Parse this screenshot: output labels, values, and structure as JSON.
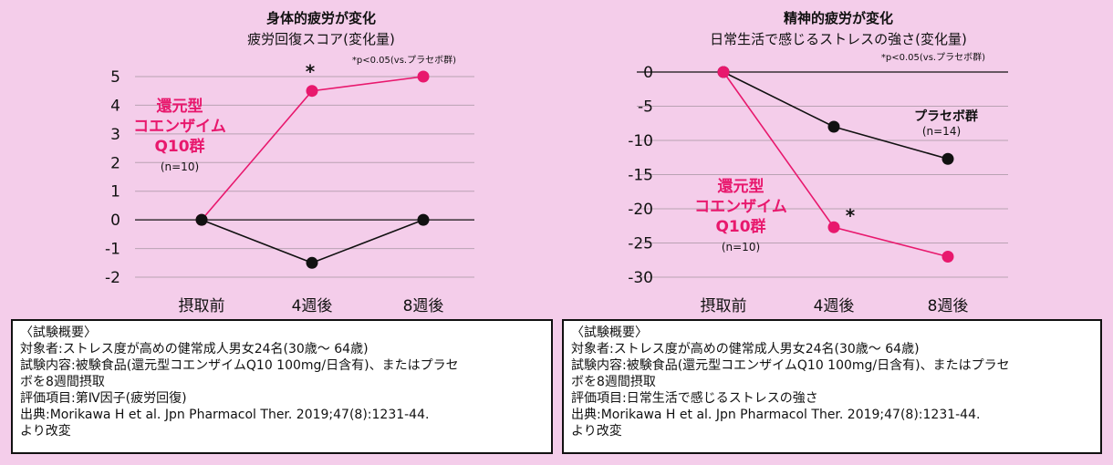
{
  "colors": {
    "background": "#f4cdea",
    "treatment": "#e8186d",
    "placebo": "#111111",
    "grid": "#b9a2b3"
  },
  "chart_data": [
    {
      "type": "line",
      "title": "身体的疲労が変化",
      "subtitle": "疲労回復スコア(変化量)",
      "note": "*p<0.05(vs.プラセボ群)",
      "categories": [
        "摂取前",
        "4週後",
        "8週後"
      ],
      "yticks": [
        5,
        4,
        3,
        2,
        1,
        0,
        -1,
        -2
      ],
      "ylim": [
        -2,
        5
      ],
      "grid": true,
      "series": [
        {
          "name": "還元型コエンザイムQ10群",
          "name_lines": [
            "還元型",
            "コエンザイム",
            "Q10群"
          ],
          "n": "(n=10)",
          "values": [
            0,
            4.5,
            5
          ],
          "color": "#e8186d",
          "significance": [
            null,
            "*",
            null
          ]
        },
        {
          "name": "",
          "values": [
            0,
            -1.5,
            0
          ],
          "color": "#111111",
          "significance": [
            null,
            null,
            null
          ]
        }
      ]
    },
    {
      "type": "line",
      "title": "精神的疲労が変化",
      "subtitle": "日常生活で感じるストレスの強さ(変化量)",
      "note": "*p<0.05(vs.プラセボ群)",
      "categories": [
        "摂取前",
        "4週後",
        "8週後"
      ],
      "yticks": [
        0,
        -5,
        -10,
        -15,
        -20,
        -25,
        -30
      ],
      "ylim": [
        -30,
        0
      ],
      "grid": true,
      "series": [
        {
          "name": "プラセボ群",
          "name_lines": [
            "プラセボ群"
          ],
          "n": "(n=14)",
          "values": [
            0,
            -8,
            -12.7
          ],
          "color": "#111111",
          "significance": [
            null,
            null,
            null
          ]
        },
        {
          "name": "還元型コエンザイムQ10群",
          "name_lines": [
            "還元型",
            "コエンザイム",
            "Q10群"
          ],
          "n": "(n=10)",
          "values": [
            0,
            -22.7,
            -27
          ],
          "color": "#e8186d",
          "significance": [
            null,
            "*",
            null
          ]
        }
      ]
    }
  ],
  "info_boxes": [
    {
      "lines": [
        "〈試験概要〉",
        "対象者:ストレス度が高めの健常成人男女24名(30歳〜 64歳)",
        "試験内容:被験食品(還元型コエンザイムQ10 100mg/日含有)、またはプラセ",
        "ボを8週間摂取",
        "評価項目:第Ⅳ因子(疲労回復)",
        "出典:Morikawa H et al. Jpn Pharmacol Ther. 2019;47(8):1231-44.",
        "より改変"
      ]
    },
    {
      "lines": [
        "〈試験概要〉",
        "対象者:ストレス度が高めの健常成人男女24名(30歳〜 64歳)",
        "試験内容:被験食品(還元型コエンザイムQ10 100mg/日含有)、またはプラセ",
        "ボを8週間摂取",
        "評価項目:日常生活で感じるストレスの強さ",
        "出典:Morikawa H et al. Jpn Pharmacol Ther. 2019;47(8):1231-44.",
        "より改変"
      ]
    }
  ]
}
